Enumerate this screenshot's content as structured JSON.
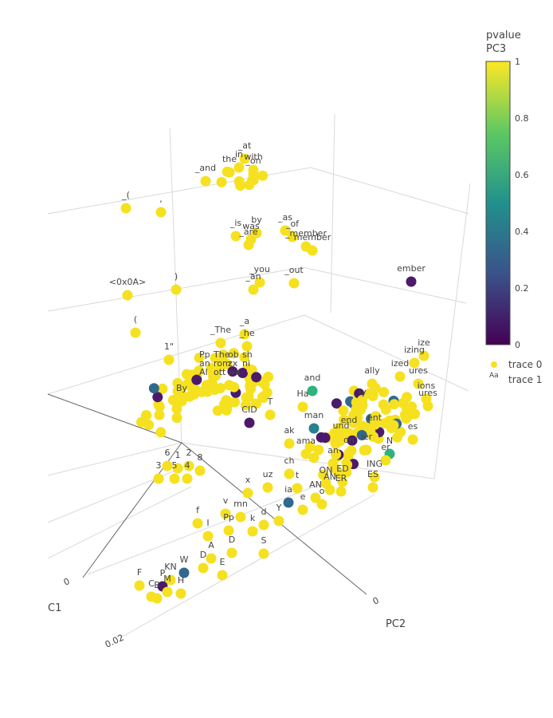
{
  "chart_data": {
    "type": "scatter3d",
    "axes": {
      "x_title": "C1",
      "y_title": "PC2",
      "x_ticks": [
        "0",
        "0.02"
      ],
      "y_ticks": [
        "0"
      ]
    },
    "colorbar": {
      "title_line1": "pvalue",
      "title_line2": "PC3",
      "tick_labels": [
        "1",
        "0.8",
        "0.6",
        "0.4",
        "0.2",
        "0"
      ],
      "stops": [
        "#fde725",
        "#5ec962",
        "#21918c",
        "#3b528b",
        "#440154"
      ]
    },
    "legend": [
      {
        "name": "trace 0",
        "symbol": "marker"
      },
      {
        "name": "trace 1",
        "symbol": "text",
        "symbol_text": "Aa"
      }
    ],
    "colors": {
      "high": "#f5e11f",
      "mid_blue": "#31688e",
      "green": "#2eb37c",
      "dark_purple": "#4b1a6b",
      "teal": "#26828e"
    },
    "labelled_points": [
      {
        "text": "_at",
        "u": 307,
        "v": 186
      },
      {
        "text": "in",
        "u": 300,
        "v": 197
      },
      {
        "text": "with",
        "u": 318,
        "v": 200
      },
      {
        "text": "the",
        "u": 288,
        "v": 203
      },
      {
        "text": "_on",
        "u": 318,
        "v": 205
      },
      {
        "text": "_and",
        "u": 258,
        "v": 214
      },
      {
        "text": "_(",
        "u": 158,
        "v": 248
      },
      {
        "text": ",",
        "u": 202,
        "v": 253
      },
      {
        "text": "_is",
        "u": 296,
        "v": 283
      },
      {
        "text": "by",
        "u": 322,
        "v": 279
      },
      {
        "text": "_as",
        "u": 358,
        "v": 276
      },
      {
        "text": "was",
        "u": 315,
        "v": 287
      },
      {
        "text": "_of",
        "u": 367,
        "v": 284
      },
      {
        "text": "_are",
        "u": 312,
        "v": 294
      },
      {
        "text": "_member",
        "u": 384,
        "v": 296
      },
      {
        "text": "member",
        "u": 392,
        "v": 301
      },
      {
        "text": "ember",
        "u": 516,
        "v": 340
      },
      {
        "text": "_you",
        "u": 326,
        "v": 341
      },
      {
        "text": "_out",
        "u": 369,
        "v": 342
      },
      {
        "text": "_an",
        "u": 318,
        "v": 350
      },
      {
        "text": "<0x0A>",
        "u": 160,
        "v": 357
      },
      {
        "text": ")",
        "u": 221,
        "v": 350
      },
      {
        "text": "(",
        "u": 170,
        "v": 404
      },
      {
        "text": "_The",
        "u": 277,
        "v": 417
      },
      {
        "text": "_a",
        "u": 307,
        "v": 406
      },
      {
        "text": "_he",
        "u": 310,
        "v": 421
      },
      {
        "text": "1\"",
        "u": 212,
        "v": 438
      },
      {
        "text": "ally",
        "u": 467,
        "v": 468
      },
      {
        "text": "ize",
        "u": 532,
        "v": 433
      },
      {
        "text": "izing",
        "u": 520,
        "v": 442
      },
      {
        "text": "ized",
        "u": 502,
        "v": 459
      },
      {
        "text": "ures",
        "u": 525,
        "v": 468
      },
      {
        "text": "and",
        "u": 392,
        "v": 477
      },
      {
        "text": "Ha",
        "u": 380,
        "v": 497
      },
      {
        "text": "ions",
        "u": 535,
        "v": 487
      },
      {
        "text": "ures",
        "u": 537,
        "v": 496
      },
      {
        "text": "ly",
        "u": 455,
        "v": 495
      },
      {
        "text": "By",
        "u": 228,
        "v": 490
      },
      {
        "text": "CID",
        "u": 313,
        "v": 517
      },
      {
        "text": "T",
        "u": 339,
        "v": 507
      },
      {
        "text": "man",
        "u": 394,
        "v": 524
      },
      {
        "text": "ent",
        "u": 470,
        "v": 527
      },
      {
        "text": "es",
        "u": 518,
        "v": 538
      },
      {
        "text": "ak",
        "u": 363,
        "v": 543
      },
      {
        "text": "ama",
        "u": 384,
        "v": 556
      },
      {
        "text": "on",
        "u": 438,
        "v": 555
      },
      {
        "text": "ier",
        "u": 460,
        "v": 551
      },
      {
        "text": "N",
        "u": 489,
        "v": 556
      },
      {
        "text": "er",
        "u": 484,
        "v": 564
      },
      {
        "text": "6",
        "u": 210,
        "v": 571
      },
      {
        "text": "2",
        "u": 237,
        "v": 571
      },
      {
        "text": "3",
        "u": 199,
        "v": 587
      },
      {
        "text": "5",
        "u": 219,
        "v": 587
      },
      {
        "text": "4",
        "u": 235,
        "v": 587
      },
      {
        "text": "8",
        "u": 251,
        "v": 577
      },
      {
        "text": "1",
        "u": 223,
        "v": 574
      },
      {
        "text": "ch",
        "u": 363,
        "v": 581
      },
      {
        "text": "an",
        "u": 418,
        "v": 568
      },
      {
        "text": "ING",
        "u": 470,
        "v": 585
      },
      {
        "text": "ON",
        "u": 409,
        "v": 593
      },
      {
        "text": "ED",
        "u": 430,
        "v": 591
      },
      {
        "text": "AN",
        "u": 414,
        "v": 601
      },
      {
        "text": "ER",
        "u": 428,
        "v": 603
      },
      {
        "text": "ES",
        "u": 468,
        "v": 598
      },
      {
        "text": "uz",
        "u": 336,
        "v": 598
      },
      {
        "text": "t",
        "u": 373,
        "v": 599
      },
      {
        "text": "x",
        "u": 311,
        "v": 605
      },
      {
        "text": "AN",
        "u": 396,
        "v": 611
      },
      {
        "text": "ia",
        "u": 362,
        "v": 617
      },
      {
        "text": "o",
        "u": 404,
        "v": 619
      },
      {
        "text": "v",
        "u": 283,
        "v": 631
      },
      {
        "text": "mn",
        "u": 302,
        "v": 635
      },
      {
        "text": "e",
        "u": 380,
        "v": 626
      },
      {
        "text": "f",
        "u": 248,
        "v": 643
      },
      {
        "text": "d",
        "u": 331,
        "v": 645
      },
      {
        "text": "Y",
        "u": 350,
        "v": 640
      },
      {
        "text": "Pp",
        "u": 287,
        "v": 652
      },
      {
        "text": "k",
        "u": 317,
        "v": 653
      },
      {
        "text": "I",
        "u": 261,
        "v": 659
      },
      {
        "text": "D",
        "u": 291,
        "v": 680
      },
      {
        "text": "A",
        "u": 265,
        "v": 687
      },
      {
        "text": "S",
        "u": 331,
        "v": 681
      },
      {
        "text": "D",
        "u": 255,
        "v": 699
      },
      {
        "text": "E",
        "u": 279,
        "v": 708
      },
      {
        "text": "W",
        "u": 231,
        "v": 705
      },
      {
        "text": "KN",
        "u": 214,
        "v": 714
      },
      {
        "text": "F",
        "u": 175,
        "v": 721
      },
      {
        "text": "P",
        "u": 204,
        "v": 722
      },
      {
        "text": "M",
        "u": 210,
        "v": 729
      },
      {
        "text": "H",
        "u": 227,
        "v": 731
      },
      {
        "text": "C",
        "u": 190,
        "v": 735
      },
      {
        "text": "B",
        "u": 197,
        "v": 737
      },
      {
        "text": "end",
        "u": 438,
        "v": 530
      },
      {
        "text": "und",
        "u": 428,
        "v": 537
      }
    ],
    "cluster_text": [
      "Pp",
      "The",
      "ob",
      "sh",
      "an",
      "rom",
      "zx",
      "ni",
      "AI",
      "ott",
      "wa"
    ]
  }
}
